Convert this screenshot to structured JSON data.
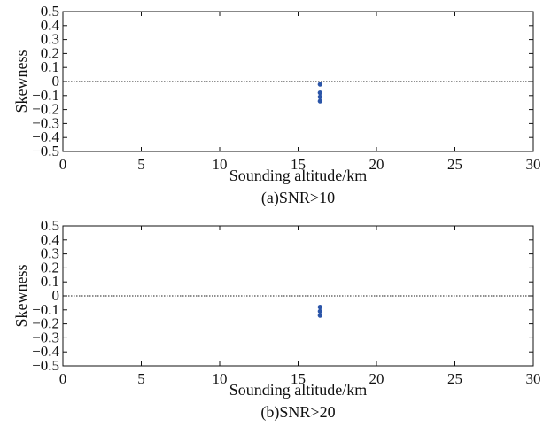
{
  "chart_data": [
    {
      "type": "scatter",
      "caption": "(a)SNR>10",
      "xlabel": "Sounding altitude/km",
      "ylabel": "Skewness",
      "xlim": [
        0,
        30
      ],
      "ylim": [
        -0.5,
        0.5
      ],
      "xticks": [
        0,
        5,
        10,
        15,
        20,
        25,
        30
      ],
      "yticks": [
        -0.5,
        -0.4,
        -0.3,
        -0.2,
        -0.1,
        0,
        0.1,
        0.2,
        0.3,
        0.4,
        0.5
      ],
      "ytick_labels": [
        "−0.5",
        "−0.4",
        "−0.3",
        "−0.2",
        "−0.1",
        "0",
        "0.1",
        "0.2",
        "0.3",
        "0.4",
        "0.5"
      ],
      "reference_line": {
        "y": 0,
        "style": "dotted"
      },
      "grid": false,
      "marker_color": "#2b55a8",
      "points": [
        {
          "x": 16.4,
          "y": -0.02
        },
        {
          "x": 16.4,
          "y": -0.08
        },
        {
          "x": 16.4,
          "y": -0.11
        },
        {
          "x": 16.4,
          "y": -0.14
        }
      ]
    },
    {
      "type": "scatter",
      "caption": "(b)SNR>20",
      "xlabel": "Sounding altitude/km",
      "ylabel": "Skewness",
      "xlim": [
        0,
        30
      ],
      "ylim": [
        -0.5,
        0.5
      ],
      "xticks": [
        0,
        5,
        10,
        15,
        20,
        25,
        30
      ],
      "yticks": [
        -0.5,
        -0.4,
        -0.3,
        -0.2,
        -0.1,
        0,
        0.1,
        0.2,
        0.3,
        0.4,
        0.5
      ],
      "ytick_labels": [
        "−0.5",
        "−0.4",
        "−0.3",
        "−0.2",
        "−0.1",
        "0",
        "0.1",
        "0.2",
        "0.3",
        "0.4",
        "0.5"
      ],
      "reference_line": {
        "y": 0,
        "style": "dotted"
      },
      "grid": false,
      "marker_color": "#2b55a8",
      "points": [
        {
          "x": 16.4,
          "y": -0.08
        },
        {
          "x": 16.4,
          "y": -0.11
        },
        {
          "x": 16.4,
          "y": -0.14
        }
      ]
    }
  ]
}
